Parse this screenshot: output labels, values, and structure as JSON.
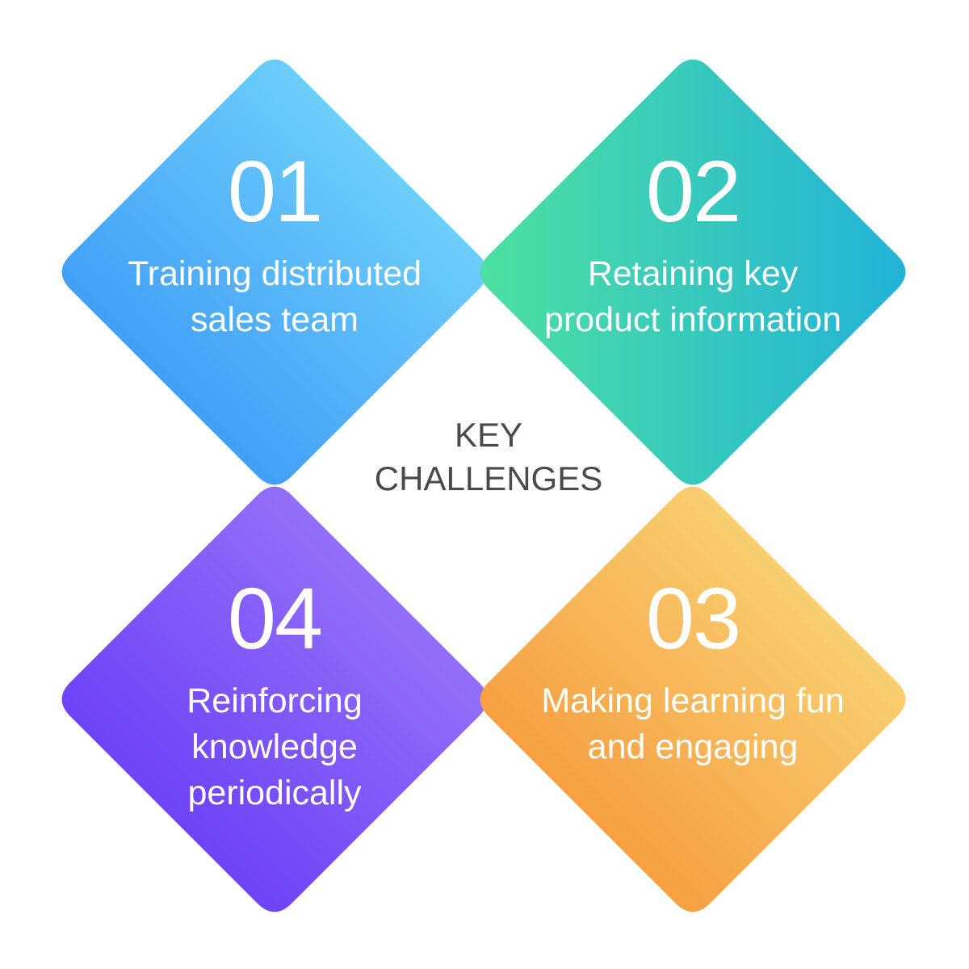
{
  "center_title": "KEY\nCHALLENGES",
  "challenges": [
    {
      "number": "01",
      "label": "Training distributed sales team",
      "colors": {
        "start": "#2F8AF5",
        "end": "#7FE3FD"
      }
    },
    {
      "number": "02",
      "label": "Retaining key product information",
      "colors": {
        "start": "#4DE0A0",
        "end": "#22B3D8"
      }
    },
    {
      "number": "03",
      "label": "Making learning fun and engaging",
      "colors": {
        "start": "#F48A2C",
        "end": "#FBE486"
      }
    },
    {
      "number": "04",
      "label": "Reinforcing knowledge periodically",
      "colors": {
        "start": "#5B2EF6",
        "end": "#A484F9"
      }
    }
  ]
}
